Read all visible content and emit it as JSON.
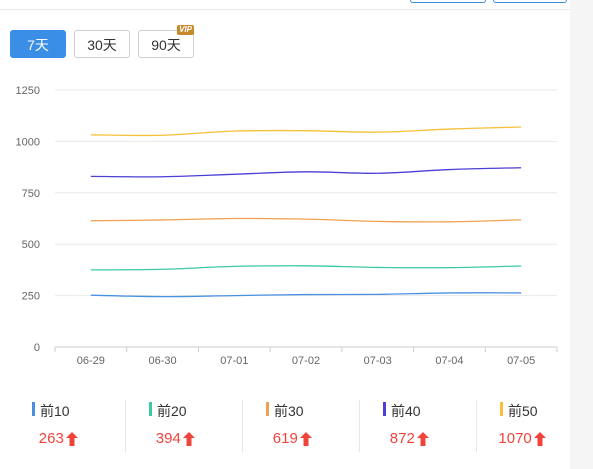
{
  "range_buttons": [
    {
      "label": "7天",
      "active": true
    },
    {
      "label": "30天",
      "active": false
    },
    {
      "label": "90天",
      "active": false,
      "badge": "VIP"
    }
  ],
  "colors": {
    "top10": "#4a90e2",
    "top20": "#3cc8a8",
    "top30": "#f0a050",
    "top40": "#4b3fd6",
    "top50": "#f5c13a",
    "up": "#f0443b",
    "accent": "#3a8ee6"
  },
  "chart_data": {
    "type": "line",
    "x": [
      "06-29",
      "06-30",
      "07-01",
      "07-02",
      "07-03",
      "07-04",
      "07-05"
    ],
    "ylim": [
      0,
      1250
    ],
    "yticks": [
      0,
      250,
      500,
      750,
      1000,
      1250
    ],
    "grid": true,
    "series": [
      {
        "name": "前10",
        "values": [
          252,
          245,
          250,
          255,
          256,
          263,
          263
        ]
      },
      {
        "name": "前20",
        "values": [
          375,
          378,
          392,
          395,
          387,
          386,
          394
        ]
      },
      {
        "name": "前30",
        "values": [
          614,
          618,
          625,
          622,
          611,
          609,
          619
        ]
      },
      {
        "name": "前40",
        "values": [
          830,
          828,
          840,
          852,
          845,
          863,
          872
        ]
      },
      {
        "name": "前50",
        "values": [
          1032,
          1030,
          1050,
          1052,
          1045,
          1060,
          1070
        ]
      }
    ]
  },
  "legend": [
    {
      "name": "前10",
      "value": "263",
      "color_key": "top10"
    },
    {
      "name": "前20",
      "value": "394",
      "color_key": "top20"
    },
    {
      "name": "前30",
      "value": "619",
      "color_key": "top30"
    },
    {
      "name": "前40",
      "value": "872",
      "color_key": "top40"
    },
    {
      "name": "前50",
      "value": "1070",
      "color_key": "top50"
    }
  ]
}
